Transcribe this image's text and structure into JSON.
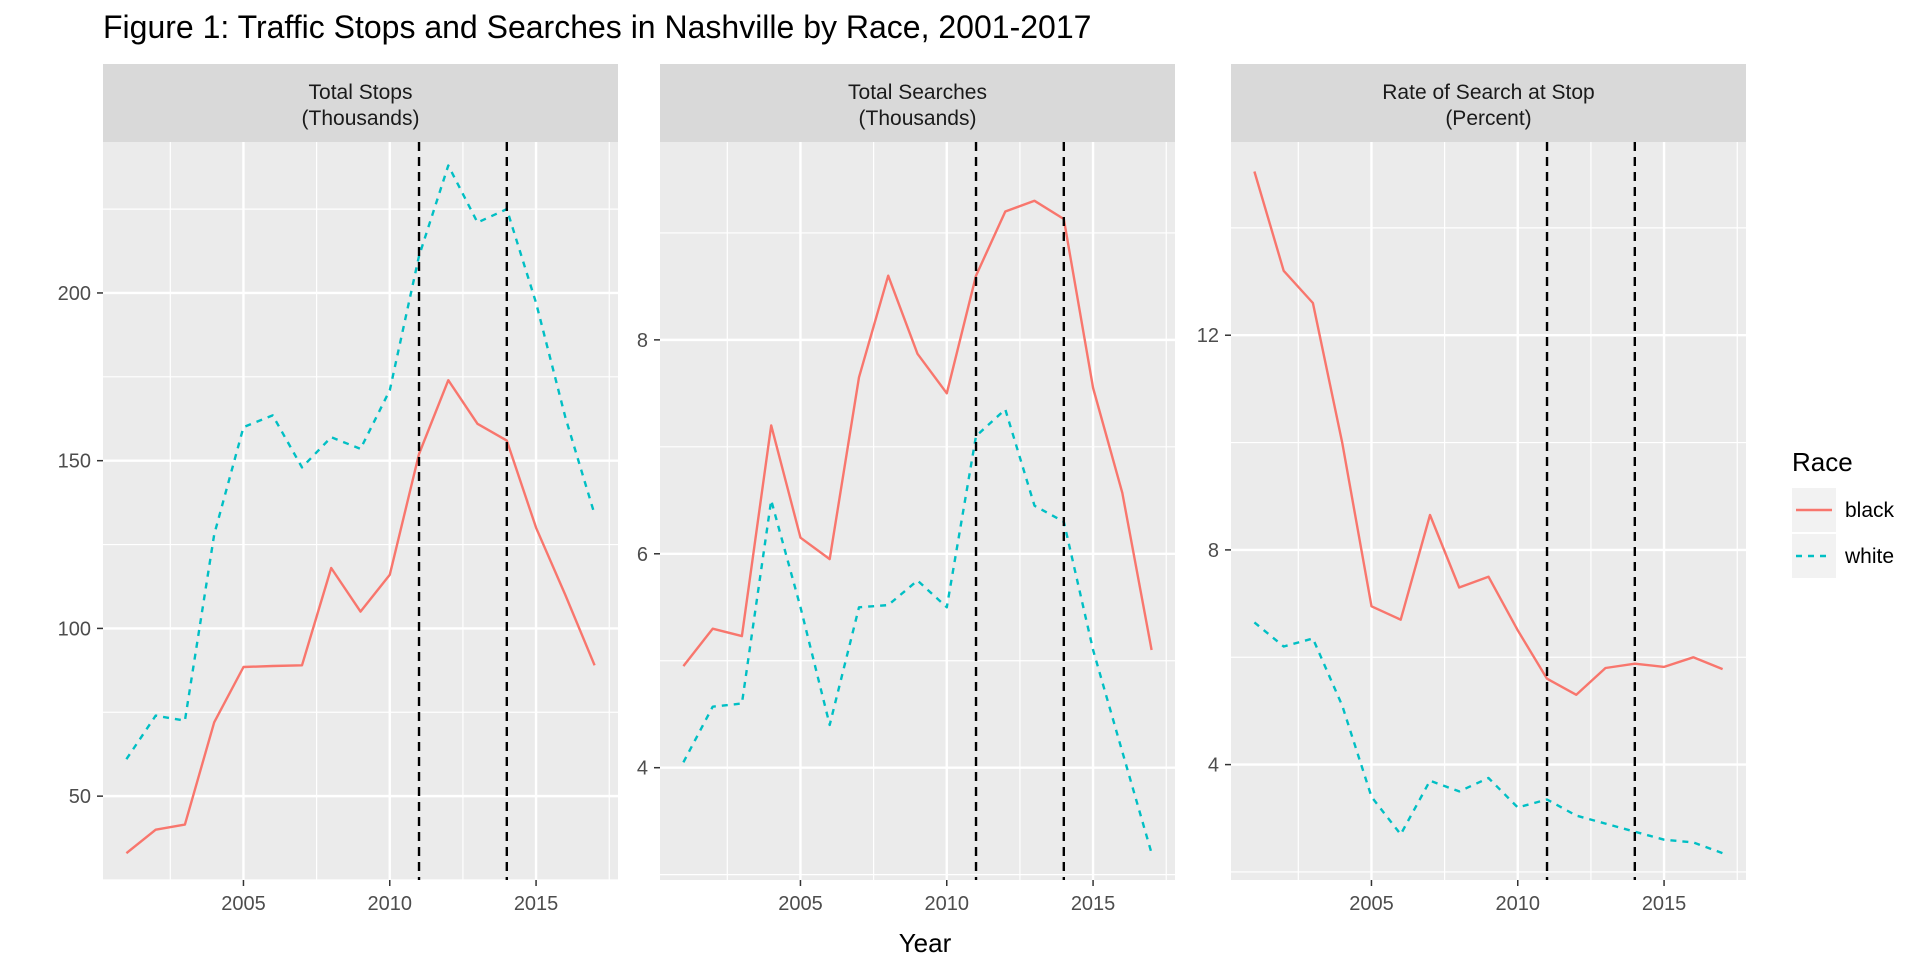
{
  "figure": {
    "title": "Figure 1: Traffic Stops and Searches in Nashville by Race, 2001-2017",
    "xlabel": "Year"
  },
  "legend": {
    "title": "Race",
    "entries": [
      {
        "label": "black",
        "color": "#F8766D",
        "linetype": "solid"
      },
      {
        "label": "white",
        "color": "#00BFC4",
        "linetype": "dashed"
      }
    ]
  },
  "vlines": {
    "x": [
      2011,
      2014
    ],
    "color": "#000000",
    "linetype": "dashed"
  },
  "chart_data": [
    {
      "type": "line",
      "strip": [
        "Total Stops",
        "(Thousands)"
      ],
      "x": [
        2001,
        2002,
        2003,
        2004,
        2005,
        2006,
        2007,
        2008,
        2009,
        2010,
        2011,
        2012,
        2013,
        2014,
        2015,
        2016,
        2017
      ],
      "xlim": [
        2000.2,
        2017.8
      ],
      "xticks": [
        2005,
        2010,
        2015
      ],
      "ylim": [
        25,
        245
      ],
      "yticks": [
        50,
        100,
        150,
        200
      ],
      "grid": true,
      "series": [
        {
          "name": "black",
          "values": [
            33,
            40,
            41.5,
            72,
            88.5,
            88.8,
            89,
            118,
            105,
            116,
            152,
            174,
            161,
            156,
            130,
            110,
            89
          ]
        },
        {
          "name": "white",
          "values": [
            61,
            74,
            72.5,
            128,
            160,
            163.5,
            148,
            157,
            153.5,
            171,
            211,
            238,
            221,
            225,
            197,
            163,
            134
          ]
        }
      ]
    },
    {
      "type": "line",
      "strip": [
        "Total Searches",
        "(Thousands)"
      ],
      "x": [
        2001,
        2002,
        2003,
        2004,
        2005,
        2006,
        2007,
        2008,
        2009,
        2010,
        2011,
        2012,
        2013,
        2014,
        2015,
        2016,
        2017
      ],
      "xlim": [
        2000.2,
        2017.8
      ],
      "xticks": [
        2005,
        2010,
        2015
      ],
      "ylim": [
        2.95,
        9.85
      ],
      "yticks": [
        4,
        6,
        8
      ],
      "grid": true,
      "series": [
        {
          "name": "black",
          "values": [
            4.95,
            5.3,
            5.23,
            7.2,
            6.15,
            5.95,
            7.65,
            8.6,
            7.87,
            7.5,
            8.6,
            9.2,
            9.3,
            9.13,
            7.55,
            6.57,
            5.1
          ]
        },
        {
          "name": "white",
          "values": [
            4.05,
            4.57,
            4.6,
            6.5,
            5.5,
            4.4,
            5.5,
            5.52,
            5.75,
            5.5,
            7.1,
            7.35,
            6.45,
            6.3,
            5.1,
            4.15,
            3.2
          ]
        }
      ]
    },
    {
      "type": "line",
      "strip": [
        "Rate of Search at Stop",
        "(Percent)"
      ],
      "x": [
        2001,
        2002,
        2003,
        2004,
        2005,
        2006,
        2007,
        2008,
        2009,
        2010,
        2011,
        2012,
        2013,
        2014,
        2015,
        2016,
        2017
      ],
      "xlim": [
        2000.2,
        2017.8
      ],
      "xticks": [
        2005,
        2010,
        2015
      ],
      "ylim": [
        1.85,
        15.6
      ],
      "yticks": [
        4,
        8,
        12
      ],
      "grid": true,
      "series": [
        {
          "name": "black",
          "values": [
            15.05,
            13.2,
            12.6,
            10.0,
            6.95,
            6.7,
            8.65,
            7.3,
            7.5,
            6.5,
            5.6,
            5.3,
            5.8,
            5.88,
            5.82,
            6.0,
            5.78
          ]
        },
        {
          "name": "white",
          "values": [
            6.65,
            6.2,
            6.35,
            5.1,
            3.4,
            2.7,
            3.7,
            3.5,
            3.75,
            3.2,
            3.35,
            3.05,
            2.9,
            2.75,
            2.6,
            2.55,
            2.35
          ]
        }
      ]
    }
  ]
}
